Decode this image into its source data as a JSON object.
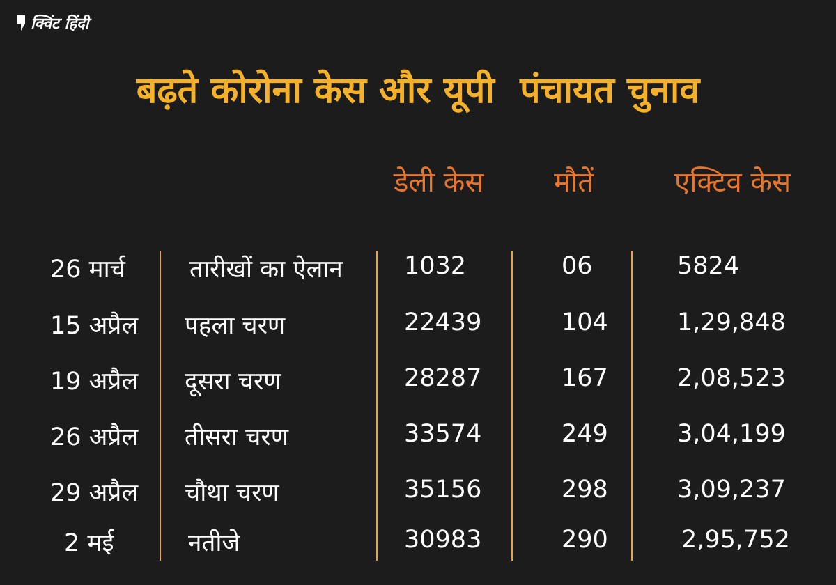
{
  "brand": {
    "name": "क्विंट हिंदी"
  },
  "colors": {
    "background": "#1c1c1c",
    "title": "#f5b12a",
    "header": "#e8762c",
    "text": "#ffffff",
    "divider": "#e8a447"
  },
  "chart_data": {
    "type": "table",
    "title": "बढ़ते कोरोना केस और यूपी  पंचायत चुनाव",
    "columns": [
      "",
      "",
      "डेली केस",
      "मौतें",
      "एक्टिव केस"
    ],
    "rows": [
      {
        "date": "26 मार्च",
        "event": "तारीखों का ऐलान",
        "daily_cases": "1032",
        "deaths": "06",
        "active_cases": "5824"
      },
      {
        "date": "15 अप्रैल",
        "event": "पहला चरण",
        "daily_cases": "22439",
        "deaths": "104",
        "active_cases": "1,29,848"
      },
      {
        "date": "19 अप्रैल",
        "event": "दूसरा चरण",
        "daily_cases": "28287",
        "deaths": "167",
        "active_cases": "2,08,523"
      },
      {
        "date": "26 अप्रैल",
        "event": "तीसरा चरण",
        "daily_cases": "33574",
        "deaths": "249",
        "active_cases": "3,04,199"
      },
      {
        "date": "29 अप्रैल",
        "event": "चौथा चरण",
        "daily_cases": "35156",
        "deaths": "298",
        "active_cases": "3,09,237"
      },
      {
        "date": "2 मई",
        "event": "नतीजे",
        "daily_cases": "30983",
        "deaths": "290",
        "active_cases": "2,95,752"
      }
    ]
  }
}
